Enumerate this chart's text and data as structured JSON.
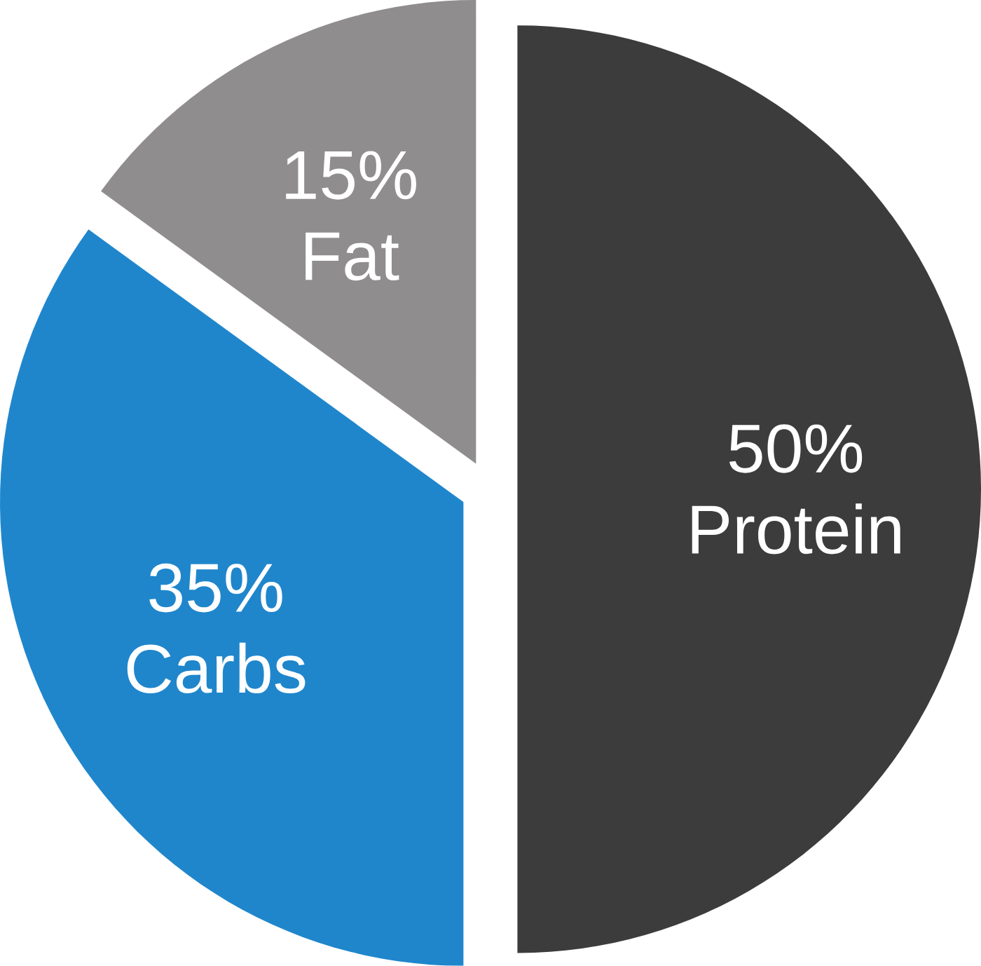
{
  "chart_data": {
    "type": "pie",
    "categories": [
      "Protein",
      "Carbs",
      "Fat"
    ],
    "values": [
      50,
      35,
      15
    ],
    "value_labels": [
      "50%",
      "35%",
      "15%"
    ],
    "colors": [
      "#3c3c3c",
      "#1f86cc",
      "#8f8d8d"
    ]
  }
}
